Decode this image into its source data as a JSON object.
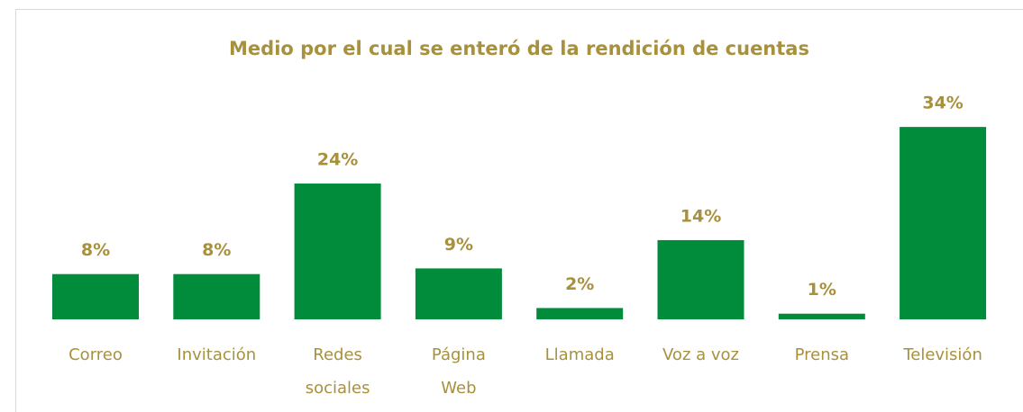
{
  "chart_data": {
    "type": "bar",
    "title": "Medio por el cual se enteró de la rendición de cuentas",
    "categories": [
      "Correo",
      "Invitación",
      "Redes sociales",
      "Página Web",
      "Llamada",
      "Voz a voz",
      "Prensa",
      "Televisión"
    ],
    "values": [
      8,
      8,
      24,
      9,
      2,
      14,
      1,
      34
    ],
    "value_labels": [
      "8%",
      "8%",
      "24%",
      "9%",
      "2%",
      "14%",
      "1%",
      "34%"
    ],
    "color": "#008c3a"
  }
}
